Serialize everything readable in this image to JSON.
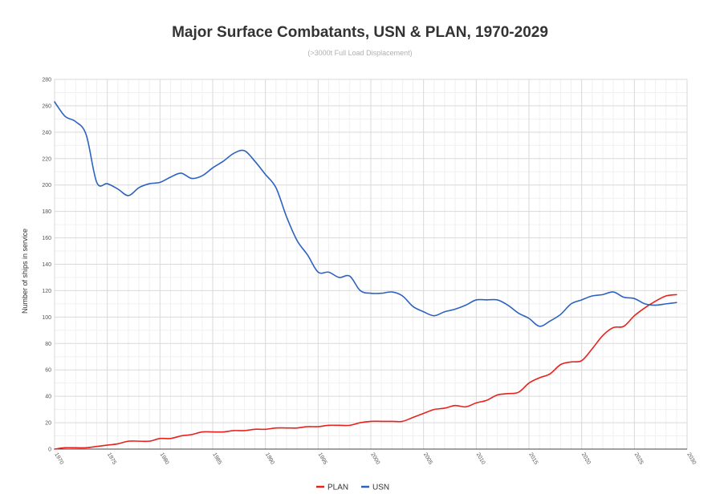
{
  "chart_data": {
    "type": "line",
    "title": "Major Surface Combatants, USN & PLAN, 1970-2029",
    "subtitle": "(>3000t Full Load Displacement)",
    "xlabel": "",
    "ylabel": "Number of ships in service",
    "xlim": [
      1970,
      2030
    ],
    "ylim": [
      0,
      280
    ],
    "x_ticks": [
      1970,
      1975,
      1980,
      1985,
      1990,
      1995,
      2000,
      2005,
      2010,
      2015,
      2020,
      2025,
      2030
    ],
    "y_ticks": [
      0,
      20,
      40,
      60,
      80,
      100,
      120,
      140,
      160,
      180,
      200,
      220,
      240,
      260,
      280
    ],
    "grid": true,
    "legend_position": "bottom",
    "series": [
      {
        "name": "PLAN",
        "color": "#e8211c",
        "x": [
          1970,
          1971,
          1972,
          1973,
          1974,
          1975,
          1976,
          1977,
          1978,
          1979,
          1980,
          1981,
          1982,
          1983,
          1984,
          1985,
          1986,
          1987,
          1988,
          1989,
          1990,
          1991,
          1992,
          1993,
          1994,
          1995,
          1996,
          1997,
          1998,
          1999,
          2000,
          2001,
          2002,
          2003,
          2004,
          2005,
          2006,
          2007,
          2008,
          2009,
          2010,
          2011,
          2012,
          2013,
          2014,
          2015,
          2016,
          2017,
          2018,
          2019,
          2020,
          2021,
          2022,
          2023,
          2024,
          2025,
          2026,
          2027,
          2028,
          2029
        ],
        "values": [
          0,
          1,
          1,
          1,
          2,
          3,
          4,
          6,
          6,
          6,
          8,
          8,
          10,
          11,
          13,
          13,
          13,
          14,
          14,
          15,
          15,
          16,
          16,
          16,
          17,
          17,
          18,
          18,
          18,
          20,
          21,
          21,
          21,
          21,
          24,
          27,
          30,
          31,
          33,
          32,
          35,
          37,
          41,
          42,
          43,
          50,
          54,
          57,
          64,
          66,
          67,
          76,
          86,
          92,
          93,
          101,
          107,
          112,
          116,
          117
        ]
      },
      {
        "name": "USN",
        "color": "#2c62c0",
        "x": [
          1970,
          1971,
          1972,
          1973,
          1974,
          1975,
          1976,
          1977,
          1978,
          1979,
          1980,
          1981,
          1982,
          1983,
          1984,
          1985,
          1986,
          1987,
          1988,
          1989,
          1990,
          1991,
          1992,
          1993,
          1994,
          1995,
          1996,
          1997,
          1998,
          1999,
          2000,
          2001,
          2002,
          2003,
          2004,
          2005,
          2006,
          2007,
          2008,
          2009,
          2010,
          2011,
          2012,
          2013,
          2014,
          2015,
          2016,
          2017,
          2018,
          2019,
          2020,
          2021,
          2022,
          2023,
          2024,
          2025,
          2026,
          2027,
          2028,
          2029
        ],
        "values": [
          263,
          252,
          248,
          238,
          202,
          201,
          197,
          192,
          198,
          201,
          202,
          206,
          209,
          205,
          207,
          213,
          218,
          224,
          226,
          218,
          208,
          198,
          176,
          158,
          147,
          134,
          134,
          130,
          131,
          120,
          118,
          118,
          119,
          116,
          108,
          104,
          101,
          104,
          106,
          109,
          113,
          113,
          113,
          109,
          103,
          99,
          93,
          97,
          102,
          110,
          113,
          116,
          117,
          119,
          115,
          114,
          110,
          109,
          110,
          111
        ]
      }
    ]
  }
}
